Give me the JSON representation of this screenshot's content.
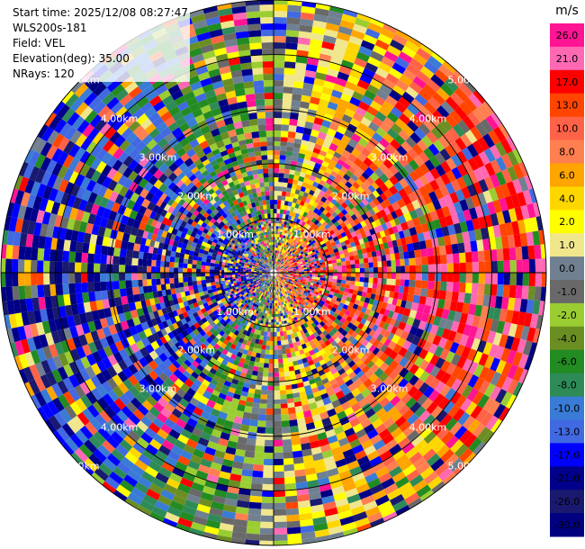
{
  "header": {
    "start_time": "Start time: 2025/12/08 08:27:47",
    "instrument": "WLS200s-181",
    "field": "Field: VEL",
    "elevation": "Elevation(deg): 35.00",
    "nrays": "NRays: 120"
  },
  "colorbar": {
    "unit": "m/s",
    "ticks": [
      "26.0",
      "21.0",
      "17.0",
      "13.0",
      "10.0",
      "8.0",
      "6.0",
      "4.0",
      "2.0",
      "1.0",
      "0.0",
      "-1.0",
      "-2.0",
      "-4.0",
      "-6.0",
      "-8.0",
      "-10.0",
      "-13.0",
      "-17.0",
      "-21.0",
      "-26.0",
      "-30.0"
    ],
    "colors": [
      "#ff1493",
      "#ff69b4",
      "#ff0000",
      "#ff4500",
      "#ff6347",
      "#ff7f50",
      "#ffa500",
      "#ffd700",
      "#ffff00",
      "#f0e68c",
      "#708090",
      "#696969",
      "#9acd32",
      "#6b8e23",
      "#228b22",
      "#2e8b57",
      "#3a7bd5",
      "#4169e1",
      "#0000ff",
      "#00008b",
      "#191970",
      "#000080"
    ]
  },
  "chart_data": {
    "type": "ppi_polar",
    "field": "VEL",
    "unit": "m/s",
    "nrays": 120,
    "range_rings_km": [
      1,
      2,
      3,
      4,
      5
    ],
    "range_ring_labels": [
      "1.00km",
      "2.00km",
      "3.00km",
      "4.00km",
      "5.00km"
    ],
    "max_range_km": 5.0,
    "value_range": [
      -30,
      26
    ],
    "dominant_pattern": "positive velocities (reds/pinks) to the east, negative velocities (blues/navy) to the west, noisy multicolour gates at most ranges"
  }
}
